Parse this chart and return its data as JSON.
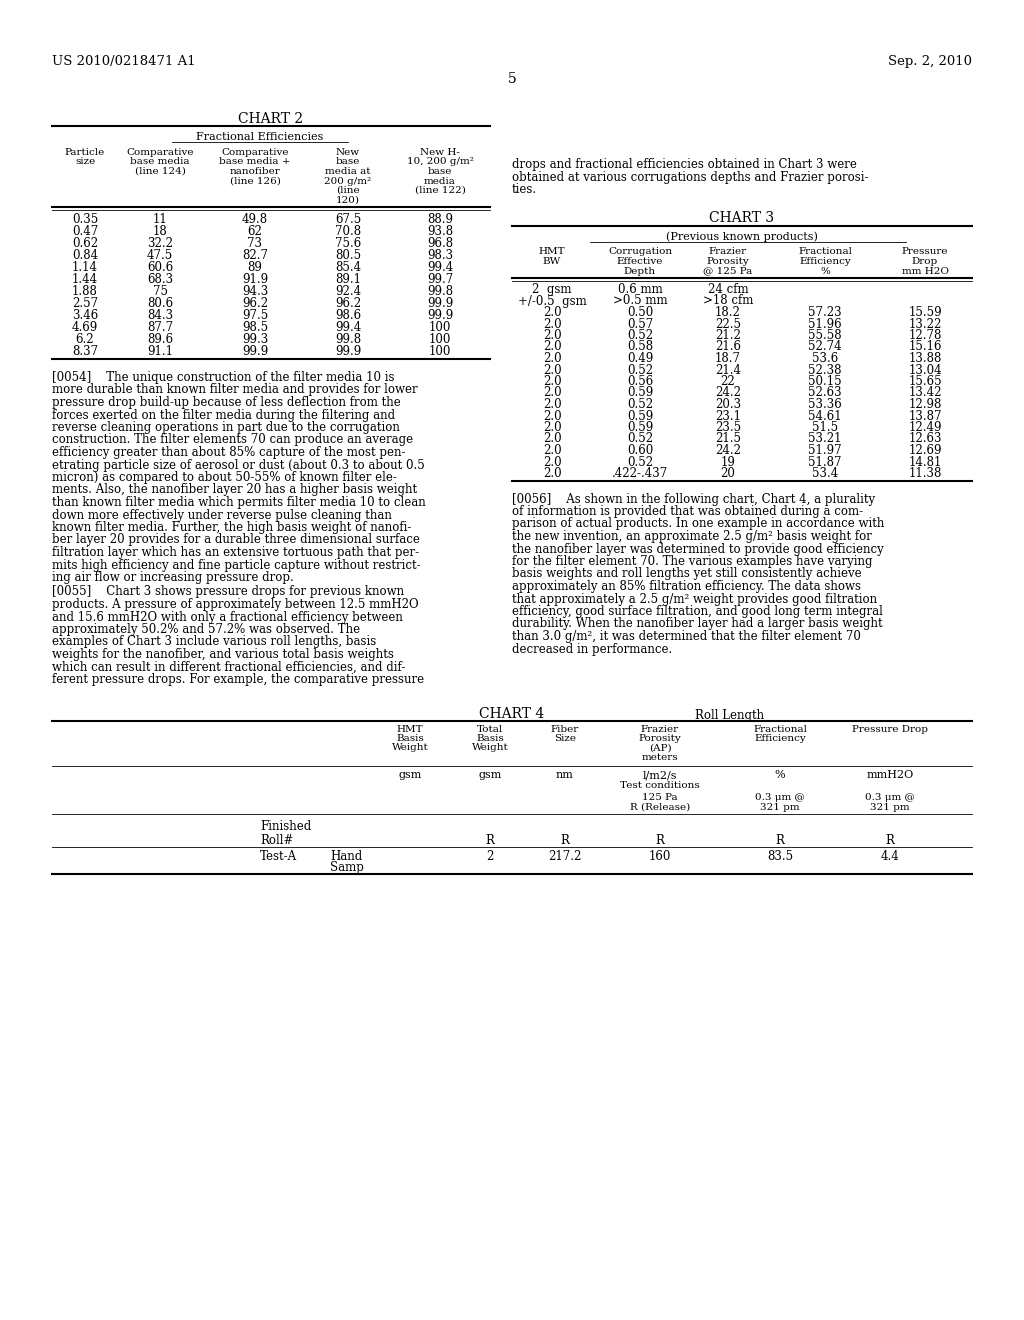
{
  "page_header_left": "US 2010/0218471 A1",
  "page_header_right": "Sep. 2, 2010",
  "page_number": "5",
  "bg_color": "#ffffff",
  "chart2_title": "CHART 2",
  "chart2_subtitle": "Fractional Efficiencies",
  "chart2_col_centers": [
    85,
    160,
    255,
    348,
    440
  ],
  "chart2_header_lines": [
    [
      "Particle",
      "size"
    ],
    [
      "Comparative",
      "base media",
      "(line 124)"
    ],
    [
      "Comparative",
      "base media +",
      "nanofiber",
      "(line 126)"
    ],
    [
      "New",
      "base",
      "media at",
      "200 g/m²",
      "(line",
      "120)"
    ],
    [
      "New H-",
      "10, 200 g/m²",
      "base",
      "media",
      "(line 122)"
    ]
  ],
  "chart2_rows": [
    [
      "0.35",
      "11",
      "49.8",
      "67.5",
      "88.9"
    ],
    [
      "0.47",
      "18",
      "62",
      "70.8",
      "93.8"
    ],
    [
      "0.62",
      "32.2",
      "73",
      "75.6",
      "96.8"
    ],
    [
      "0.84",
      "47.5",
      "82.7",
      "80.5",
      "98.3"
    ],
    [
      "1.14",
      "60.6",
      "89",
      "85.4",
      "99.4"
    ],
    [
      "1.44",
      "68.3",
      "91.9",
      "89.1",
      "99.7"
    ],
    [
      "1.88",
      "75",
      "94.3",
      "92.4",
      "99.8"
    ],
    [
      "2.57",
      "80.6",
      "96.2",
      "96.2",
      "99.9"
    ],
    [
      "3.46",
      "84.3",
      "97.5",
      "98.6",
      "99.9"
    ],
    [
      "4.69",
      "87.7",
      "98.5",
      "99.4",
      "100"
    ],
    [
      "6.2",
      "89.6",
      "99.3",
      "99.8",
      "100"
    ],
    [
      "8.37",
      "91.1",
      "99.9",
      "99.9",
      "100"
    ]
  ],
  "para54": "[0054]    The unique construction of the filter media 10 is more durable than known filter media and provides for lower pressure drop build-up because of less deflection from the forces exerted on the filter media during the filtering and reverse cleaning operations in part due to the corrugation construction. The filter elements 70 can produce an average efficiency greater than about 85% capture of the most pen-etrating particle size of aerosol or dust (about 0.3 to about 0.5 micron) as compared to about 50-55% of known filter ele-ments. Also, the nanofiber layer 20 has a higher basis weight than known filter media which permits filter media 10 to clean down more effectively under reverse pulse cleaning than known filter media. Further, the high basis weight of nanofi-ber layer 20 provides for a durable three dimensional surface filtration layer which has an extensive tortuous path that per-mits high efficiency and fine particle capture without restrict-ing air flow or increasing pressure drop.",
  "para55": "[0055]    Chart 3 shows pressure drops for previous known products. A pressure of approximately between 12.5 mmH2O and 15.6 mmH2O with only a fractional efficiency between approximately 50.2% and 57.2% was observed. The examples of Chart 3 include various roll lengths, basis weights for the nanofiber, and various total basis weights which can result in different fractional efficiencies, and dif-ferent pressure drops. For example, the comparative pressure",
  "chart3_intro": "drops and fractional efficiencies obtained in Chart 3 were obtained at various corrugations depths and Frazier porosi-ties.",
  "chart3_title": "CHART 3",
  "chart3_subtitle": "(Previous known products)",
  "chart3_col_centers": [
    552,
    640,
    728,
    825,
    925
  ],
  "chart3_header_lines": [
    [
      "HMT",
      "BW"
    ],
    [
      "Corrugation",
      "Effective",
      "Depth"
    ],
    [
      "Frazier",
      "Porosity",
      "@ 125 Pa"
    ],
    [
      "Fractional",
      "Efficiency",
      "%"
    ],
    [
      "Pressure",
      "Drop",
      "mm H2O"
    ]
  ],
  "chart3_rows": [
    [
      "2  gsm",
      "0.6 mm",
      "24 cfm",
      "",
      ""
    ],
    [
      "+/-0.5  gsm",
      ">0.5 mm",
      ">18 cfm",
      "",
      ""
    ],
    [
      "2.0",
      "0.50",
      "18.2",
      "57.23",
      "15.59"
    ],
    [
      "2.0",
      "0.57",
      "22.5",
      "51.96",
      "13.22"
    ],
    [
      "2.0",
      "0.52",
      "21.2",
      "55.58",
      "12.78"
    ],
    [
      "2.0",
      "0.58",
      "21.6",
      "52.74",
      "15.16"
    ],
    [
      "2.0",
      "0.49",
      "18.7",
      "53.6",
      "13.88"
    ],
    [
      "2.0",
      "0.52",
      "21.4",
      "52.38",
      "13.04"
    ],
    [
      "2.0",
      "0.56",
      "22",
      "50.15",
      "15.65"
    ],
    [
      "2.0",
      "0.59",
      "24.2",
      "52.63",
      "13.42"
    ],
    [
      "2.0",
      "0.52",
      "20.3",
      "53.36",
      "12.98"
    ],
    [
      "2.0",
      "0.59",
      "23.1",
      "54.61",
      "13.87"
    ],
    [
      "2.0",
      "0.59",
      "23.5",
      "51.5",
      "12.49"
    ],
    [
      "2.0",
      "0.52",
      "21.5",
      "53.21",
      "12.63"
    ],
    [
      "2.0",
      "0.60",
      "24.2",
      "51.97",
      "12.69"
    ],
    [
      "2.0",
      "0.52",
      "19",
      "51.87",
      "14.81"
    ],
    [
      "2.0",
      ".422-.437",
      "20",
      "53.4",
      "11.38"
    ]
  ],
  "para56": "[0056]    As shown in the following chart, Chart 4, a plurality of information is provided that was obtained during a com-parison of actual products. In one example in accordance with the new invention, an approximate 2.5 g/m² basis weight for the nanofiber layer was determined to provide good efficiency for the filter element 70. The various examples have varying basis weights and roll lengths yet still consistently achieve approximately an 85% filtration efficiency. The data shows that approximately a 2.5 g/m² weight provides good filtration efficiency, good surface filtration, and good long term integral durability. When the nanofiber layer had a larger basis weight than 3.0 g/m², it was determined that the filter element 70 decreased in performance.",
  "chart4_title": "CHART 4",
  "chart4_subtitle": "Roll Length",
  "chart4_col_centers": [
    410,
    490,
    565,
    660,
    780,
    890
  ],
  "chart4_header_lines": [
    [
      "HMT",
      "Basis",
      "Weight"
    ],
    [
      "Total",
      "Basis",
      "Weight"
    ],
    [
      "Fiber",
      "Size"
    ],
    [
      "Frazier",
      "Porosity",
      "(AP)",
      "meters"
    ],
    [
      "Fractional",
      "Efficiency"
    ],
    [
      "Pressure Drop"
    ]
  ],
  "chart4_units": [
    "gsm",
    "gsm",
    "nm",
    "l/m2/s",
    "%",
    "mmH2O"
  ],
  "chart4_test_cond": "Test conditions",
  "chart4_sub125": "125 Pa",
  "chart4_subR": "R (Release)",
  "chart4_sub03a": "0.3 μm @",
  "chart4_sub321": "321 pm"
}
